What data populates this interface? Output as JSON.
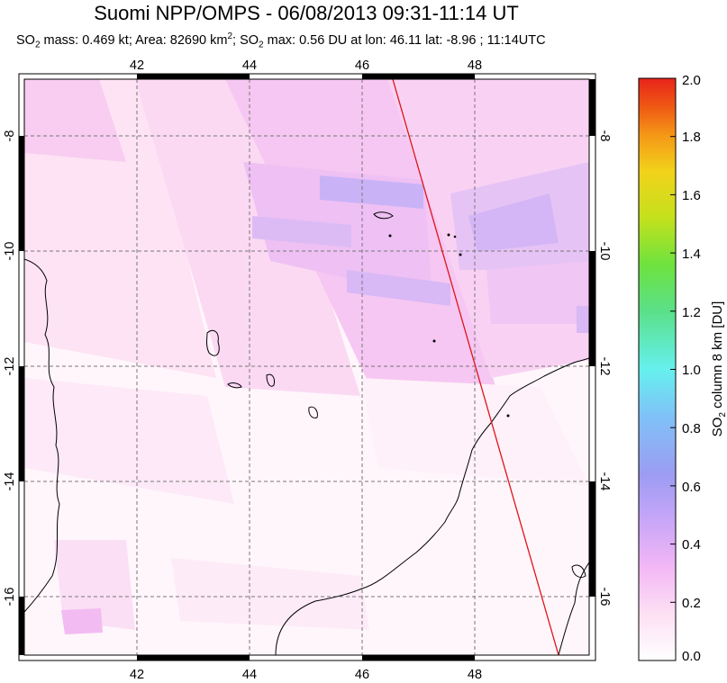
{
  "map": {
    "title": "Suomi NPP/OMPS - 06/08/2013 09:31-11:14 UT",
    "subtitle": {
      "p1": "SO",
      "s1": "2",
      "p2": " mass: 0.469 kt; Area: 82690 km",
      "s2": "2",
      "p3": "; SO",
      "s3": "2",
      "p4": " max: 0.56 DU at lon: 46.11 lat: -8.96 ; 11:14UTC"
    },
    "lon_ticks": [
      "42",
      "44",
      "46",
      "48"
    ],
    "lat_ticks": [
      "-8",
      "-10",
      "-12",
      "-14",
      "-16"
    ],
    "lon_range": [
      40,
      50
    ],
    "lat_range": [
      -17.1,
      -7.1
    ]
  },
  "colorbar": {
    "label_prefix": "SO",
    "label_sub": "2",
    "label_suffix": " column 8 km [DU]",
    "ticks": [
      "2.0",
      "1.8",
      "1.6",
      "1.4",
      "1.2",
      "1.0",
      "0.8",
      "0.6",
      "0.4",
      "0.2",
      "0.0"
    ],
    "range": [
      0.0,
      2.0
    ],
    "colors": [
      "#ffffff",
      "#fde0f4",
      "#f3b7f5",
      "#c8a6f8",
      "#9c9cf3",
      "#7fc2f7",
      "#66f0ee",
      "#5ae089",
      "#6ee23e",
      "#c4e11d",
      "#f2d21a",
      "#f59a17",
      "#ef5a14",
      "#e8231a"
    ]
  }
}
